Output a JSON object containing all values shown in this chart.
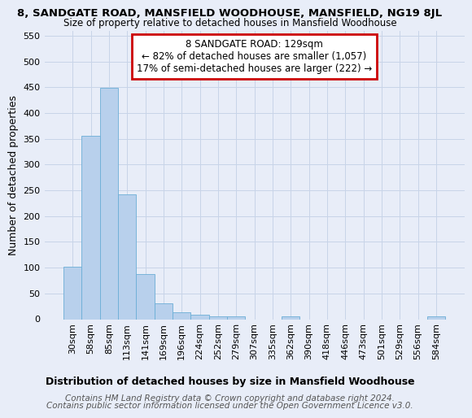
{
  "title": "8, SANDGATE ROAD, MANSFIELD WOODHOUSE, MANSFIELD, NG19 8JL",
  "subtitle": "Size of property relative to detached houses in Mansfield Woodhouse",
  "xlabel": "Distribution of detached houses by size in Mansfield Woodhouse",
  "ylabel": "Number of detached properties",
  "footer_line1": "Contains HM Land Registry data © Crown copyright and database right 2024.",
  "footer_line2": "Contains public sector information licensed under the Open Government Licence v3.0.",
  "annotation_line1": "8 SANDGATE ROAD: 129sqm",
  "annotation_line2": "← 82% of detached houses are smaller (1,057)",
  "annotation_line3": "17% of semi-detached houses are larger (222) →",
  "bar_color": "#b8d0ec",
  "bar_edge_color": "#6baed6",
  "annotation_box_color": "#ffffff",
  "annotation_box_edge": "#cc0000",
  "grid_color": "#c8d4e8",
  "bg_color": "#e8edf8",
  "categories": [
    "30sqm",
    "58sqm",
    "85sqm",
    "113sqm",
    "141sqm",
    "169sqm",
    "196sqm",
    "224sqm",
    "252sqm",
    "279sqm",
    "307sqm",
    "335sqm",
    "362sqm",
    "390sqm",
    "418sqm",
    "446sqm",
    "473sqm",
    "501sqm",
    "529sqm",
    "556sqm",
    "584sqm"
  ],
  "values": [
    101,
    356,
    449,
    242,
    88,
    30,
    13,
    9,
    5,
    5,
    0,
    0,
    5,
    0,
    0,
    0,
    0,
    0,
    0,
    0,
    5
  ],
  "ylim": [
    0,
    560
  ],
  "yticks": [
    0,
    50,
    100,
    150,
    200,
    250,
    300,
    350,
    400,
    450,
    500,
    550
  ],
  "title_fontsize": 9.5,
  "subtitle_fontsize": 8.5,
  "axis_label_fontsize": 9,
  "tick_fontsize": 8,
  "annotation_fontsize": 8.5,
  "footer_fontsize": 7.5
}
